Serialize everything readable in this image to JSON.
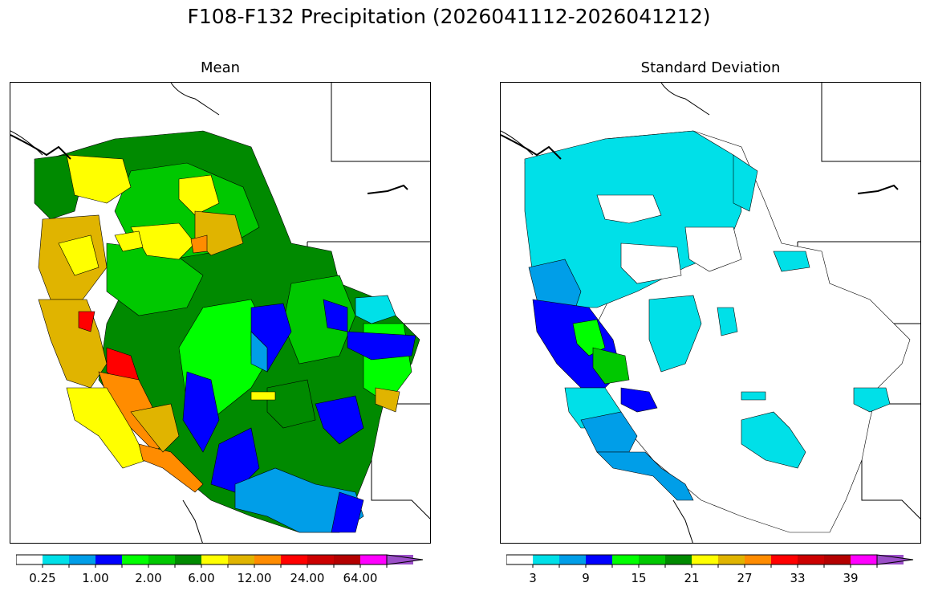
{
  "figure": {
    "title": "F108-F132 Precipitation (2026041112-2026041212)"
  },
  "panels": [
    {
      "id": "mean",
      "title": "Mean",
      "colorbar": {
        "colors": [
          "#ffffff",
          "#00e0e8",
          "#009ee8",
          "#0000ff",
          "#00ff00",
          "#00c800",
          "#008a00",
          "#ffff00",
          "#e0b400",
          "#ff8c00",
          "#ff0000",
          "#cc0000",
          "#b40000",
          "#ff00ff",
          "#9b4fc8"
        ],
        "tick_labels": [
          "0.25",
          "1.00",
          "2.00",
          "6.00",
          "12.00",
          "24.00",
          "64.00"
        ],
        "extend": "max"
      }
    },
    {
      "id": "std",
      "title": "Standard Deviation",
      "colorbar": {
        "colors": [
          "#ffffff",
          "#00e0e8",
          "#009ee8",
          "#0000ff",
          "#00ff00",
          "#00c800",
          "#008a00",
          "#ffff00",
          "#e0b400",
          "#ff8c00",
          "#ff0000",
          "#cc0000",
          "#b40000",
          "#ff00ff",
          "#9b4fc8"
        ],
        "tick_labels": [
          "3",
          "9",
          "15",
          "21",
          "27",
          "33",
          "39"
        ],
        "extend": "max"
      }
    }
  ]
}
